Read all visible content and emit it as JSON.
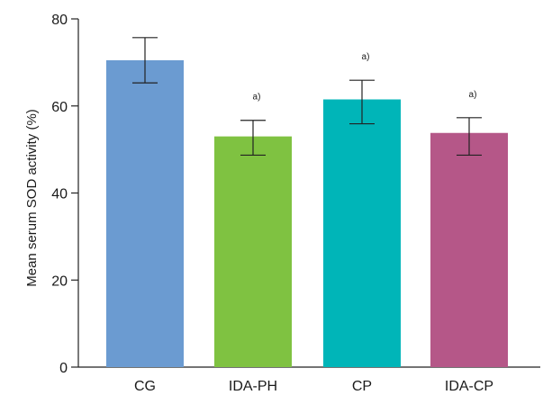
{
  "chart_data": {
    "type": "bar",
    "title": "",
    "xlabel": "",
    "ylabel": "Mean serum SOD activity (%)",
    "ylim": [
      0,
      80
    ],
    "yticks": [
      "0",
      "20",
      "40",
      "60",
      "80"
    ],
    "grid": false,
    "legend": "none",
    "categories": [
      "CG",
      "IDA-PH",
      "CP",
      "IDA-CP"
    ],
    "values": [
      70.5,
      53,
      61.5,
      53.8
    ],
    "error_upper": [
      75.7,
      56.7,
      65.9,
      57.3
    ],
    "error_lower": [
      65.3,
      48.7,
      55.9,
      48.7
    ],
    "annotations": [
      "",
      "a)",
      "a)",
      "a)"
    ],
    "colors": [
      "#6b9bd1",
      "#7fc241",
      "#00b5b8",
      "#b55788"
    ]
  }
}
